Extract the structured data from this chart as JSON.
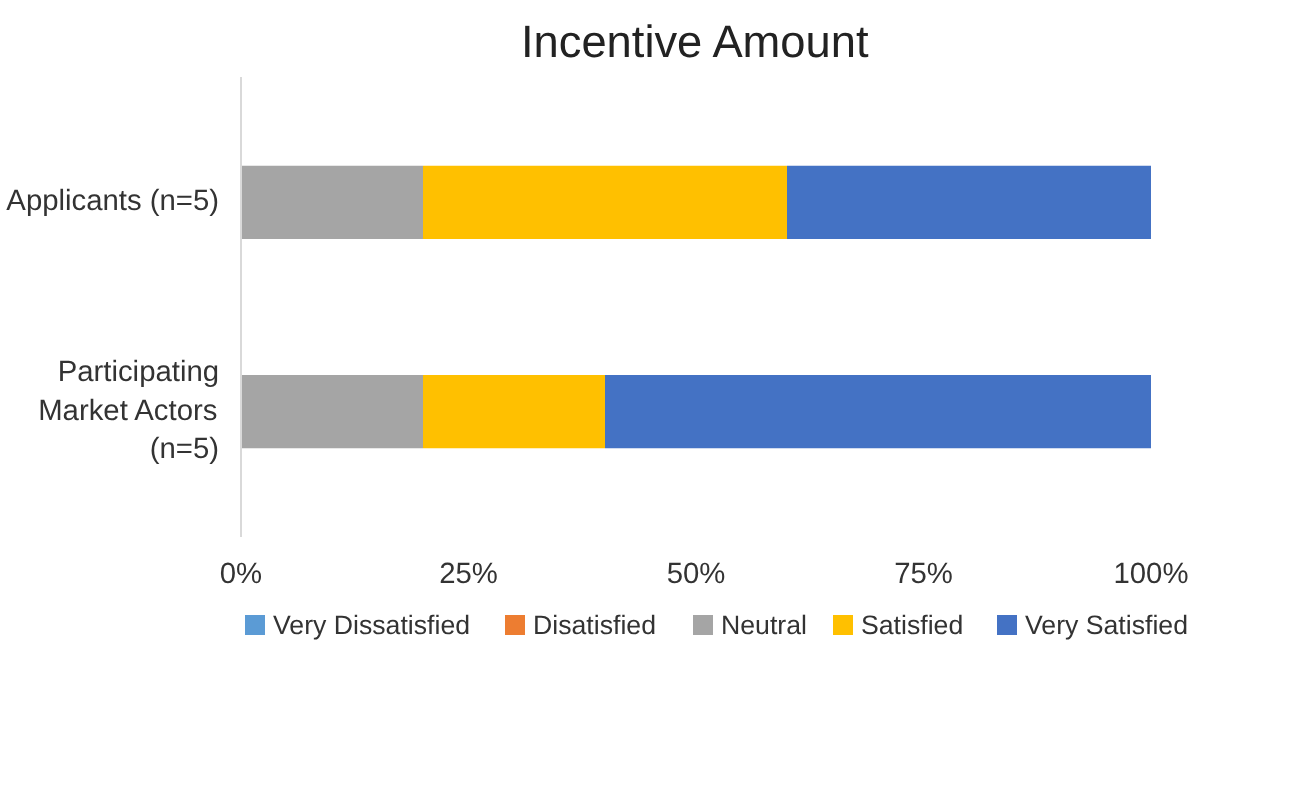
{
  "chart_data": {
    "type": "bar",
    "orientation": "horizontal",
    "stacked": true,
    "title": "Incentive Amount",
    "categories": [
      "Applicants (n=5)",
      "Participating Market Actors (n=5)"
    ],
    "series": [
      {
        "name": "Very Dissatisfied",
        "color": "#5b9bd5",
        "values": [
          0,
          0
        ]
      },
      {
        "name": "Disatisfied",
        "color": "#ed7d31",
        "values": [
          0,
          0
        ]
      },
      {
        "name": "Neutral",
        "color": "#a5a5a5",
        "values": [
          20,
          20
        ]
      },
      {
        "name": "Satisfied",
        "color": "#ffc000",
        "values": [
          40,
          20
        ]
      },
      {
        "name": "Very Satisfied",
        "color": "#4472c4",
        "values": [
          40,
          60
        ]
      }
    ],
    "xlim": [
      0,
      100
    ],
    "xticks": [
      {
        "value": 0,
        "label": "0%"
      },
      {
        "value": 25,
        "label": "25%"
      },
      {
        "value": 50,
        "label": "50%"
      },
      {
        "value": 75,
        "label": "75%"
      },
      {
        "value": 100,
        "label": "100%"
      }
    ],
    "grid": false,
    "legend": "bottom"
  }
}
